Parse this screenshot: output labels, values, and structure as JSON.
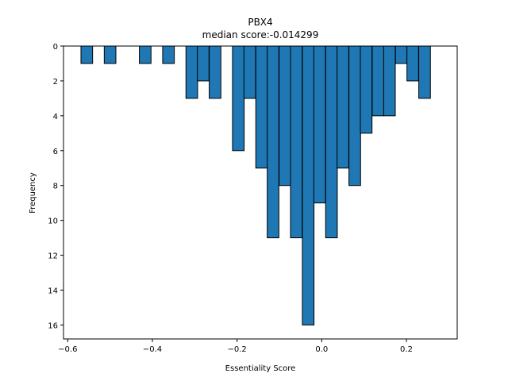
{
  "chart_data": {
    "type": "bar",
    "title": "PBX4",
    "subtitle": "median score:-0.014299",
    "xlabel": "Essentiality Score",
    "ylabel": "Frequency",
    "xlim": [
      -0.61,
      0.32
    ],
    "ylim": [
      16.8,
      0
    ],
    "y_inverted": true,
    "grid": false,
    "legend": "none",
    "bar_color": "#1f77b4",
    "edge_color": "#000000",
    "bin_width": 0.0275,
    "xticks": [
      {
        "value": -0.6,
        "label": "−0.6"
      },
      {
        "value": -0.4,
        "label": "−0.4"
      },
      {
        "value": -0.2,
        "label": "−0.2"
      },
      {
        "value": 0.0,
        "label": "0.0"
      },
      {
        "value": 0.2,
        "label": "0.2"
      }
    ],
    "yticks": [
      {
        "value": 0,
        "label": "0"
      },
      {
        "value": 2,
        "label": "2"
      },
      {
        "value": 4,
        "label": "4"
      },
      {
        "value": 6,
        "label": "6"
      },
      {
        "value": 8,
        "label": "8"
      },
      {
        "value": 10,
        "label": "10"
      },
      {
        "value": 12,
        "label": "12"
      },
      {
        "value": 14,
        "label": "14"
      },
      {
        "value": 16,
        "label": "16"
      }
    ],
    "bins": [
      {
        "x": -0.555,
        "count": 1
      },
      {
        "x": -0.5,
        "count": 1
      },
      {
        "x": -0.417,
        "count": 1
      },
      {
        "x": -0.362,
        "count": 1
      },
      {
        "x": -0.307,
        "count": 3
      },
      {
        "x": -0.28,
        "count": 2
      },
      {
        "x": -0.252,
        "count": 3
      },
      {
        "x": -0.197,
        "count": 6
      },
      {
        "x": -0.17,
        "count": 3
      },
      {
        "x": -0.142,
        "count": 7
      },
      {
        "x": -0.115,
        "count": 11
      },
      {
        "x": -0.087,
        "count": 8
      },
      {
        "x": -0.06,
        "count": 11
      },
      {
        "x": -0.032,
        "count": 16
      },
      {
        "x": -0.005,
        "count": 9
      },
      {
        "x": 0.023,
        "count": 11
      },
      {
        "x": 0.05,
        "count": 7
      },
      {
        "x": 0.078,
        "count": 8
      },
      {
        "x": 0.105,
        "count": 5
      },
      {
        "x": 0.133,
        "count": 4
      },
      {
        "x": 0.16,
        "count": 4
      },
      {
        "x": 0.188,
        "count": 1
      },
      {
        "x": 0.215,
        "count": 2
      },
      {
        "x": 0.243,
        "count": 3
      }
    ]
  }
}
